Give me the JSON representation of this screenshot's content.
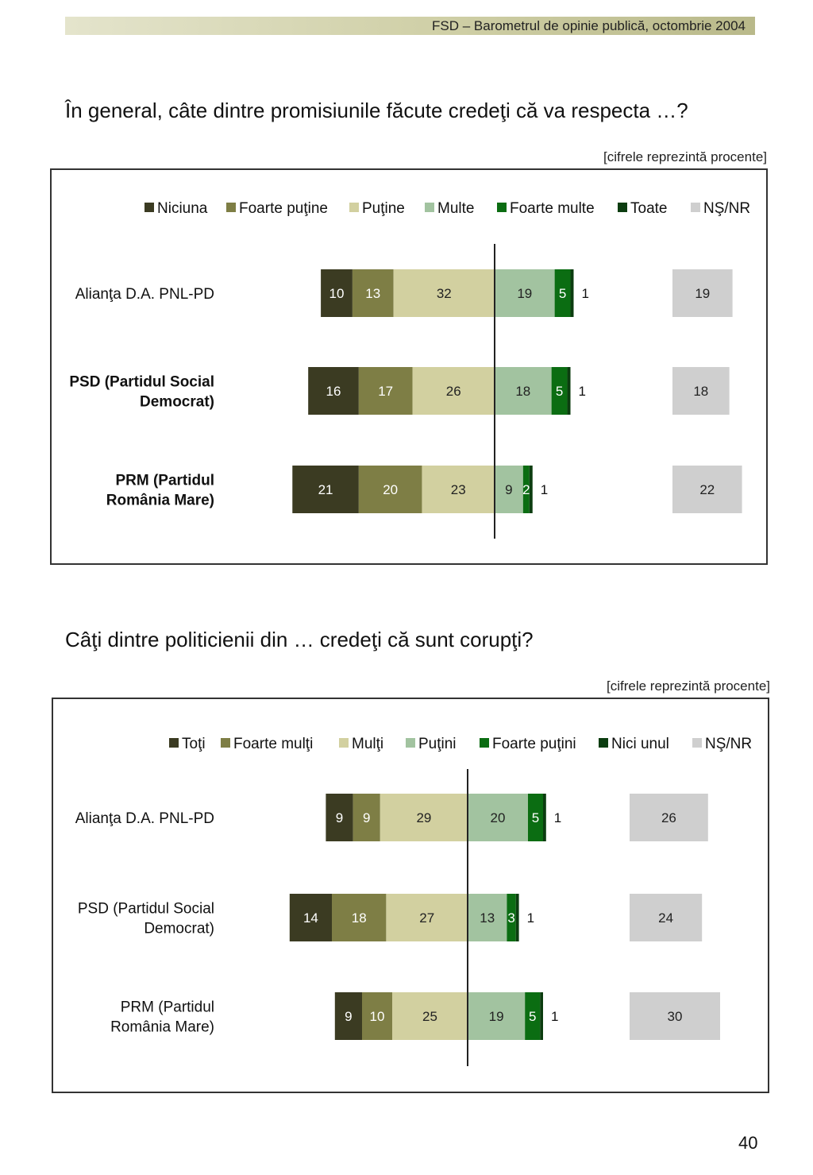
{
  "header": {
    "text": "FSD  –  Barometrul de opinie publică, octombrie 2004"
  },
  "page_number": "40",
  "colors": {
    "dark_olive": "#3b3b22",
    "olive": "#7e7e45",
    "beige": "#d2d0a0",
    "light_green": "#a2c3a0",
    "green": "#0b6d12",
    "dark_green": "#0c3d10",
    "gray": "#cfcfcf"
  },
  "chart_data": [
    {
      "type": "bar",
      "stacked": true,
      "orientation": "horizontal",
      "title": "În general, câte dintre promisiunile făcute credeţi că va respecta …?",
      "note": "[cifrele reprezintă procente]",
      "legend_position": "top",
      "series": [
        {
          "name": "Niciuna",
          "color": "#3b3b22",
          "values": [
            10,
            16,
            21
          ]
        },
        {
          "name": "Foarte puţine",
          "color": "#7e7e45",
          "values": [
            13,
            17,
            20
          ]
        },
        {
          "name": "Puţine",
          "color": "#d2d0a0",
          "values": [
            32,
            26,
            23
          ]
        },
        {
          "name": "Multe",
          "color": "#a2c3a0",
          "values": [
            19,
            18,
            9
          ]
        },
        {
          "name": "Foarte multe",
          "color": "#0b6d12",
          "values": [
            5,
            5,
            2
          ]
        },
        {
          "name": "Toate",
          "color": "#0c3d10",
          "values": [
            1,
            1,
            1
          ]
        },
        {
          "name": "NŞ/NR",
          "color": "#cfcfcf",
          "values": [
            19,
            18,
            22
          ]
        }
      ],
      "categories": [
        "Alianţa D.A. PNL-PD",
        "PSD (Partidul Social Democrat)",
        "PRM (Partidul România Mare)"
      ],
      "category_lines": [
        [
          "Alianţa D.A. PNL-PD"
        ],
        [
          "PSD (Partidul Social",
          "Democrat)"
        ],
        [
          "PRM (Partidul",
          "România Mare)"
        ]
      ],
      "category_bold": [
        false,
        true,
        true
      ]
    },
    {
      "type": "bar",
      "stacked": true,
      "orientation": "horizontal",
      "title": "Câţi dintre politicienii din … credeţi că sunt corupţi?",
      "note": "[cifrele reprezintă procente]",
      "legend_position": "top",
      "series": [
        {
          "name": "Toţi",
          "color": "#3b3b22",
          "values": [
            9,
            14,
            9
          ]
        },
        {
          "name": "Foarte mulţi",
          "color": "#7e7e45",
          "values": [
            9,
            18,
            10
          ]
        },
        {
          "name": "Mulţi",
          "color": "#d2d0a0",
          "values": [
            29,
            27,
            25
          ]
        },
        {
          "name": "Puţini",
          "color": "#a2c3a0",
          "values": [
            20,
            13,
            19
          ]
        },
        {
          "name": "Foarte puţini",
          "color": "#0b6d12",
          "values": [
            5,
            3,
            5
          ]
        },
        {
          "name": "Nici unul",
          "color": "#0c3d10",
          "values": [
            1,
            1,
            1
          ]
        },
        {
          "name": "NŞ/NR",
          "color": "#cfcfcf",
          "values": [
            26,
            24,
            30
          ]
        }
      ],
      "categories": [
        "Alianţa D.A. PNL-PD",
        "PSD (Partidul Social Democrat)",
        "PRM (Partidul România Mare)"
      ],
      "category_lines": [
        [
          "Alianţa D.A. PNL-PD"
        ],
        [
          "PSD (Partidul Social",
          "Democrat)"
        ],
        [
          "PRM (Partidul",
          "România Mare)"
        ]
      ],
      "category_bold": [
        false,
        false,
        false
      ]
    }
  ]
}
